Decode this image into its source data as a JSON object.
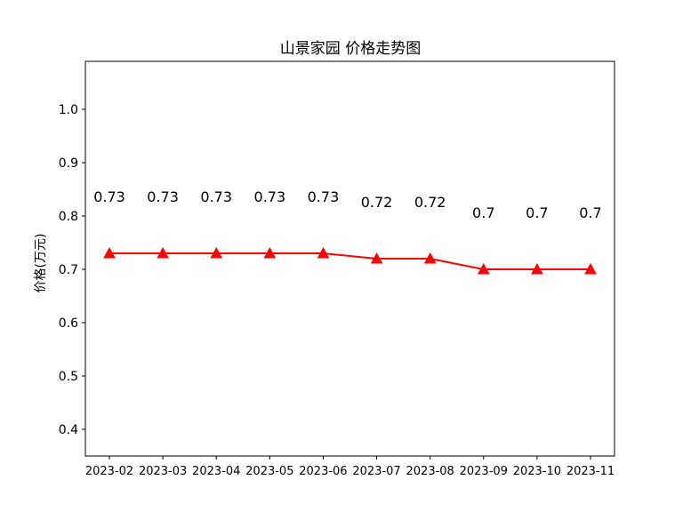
{
  "chart_data": {
    "type": "line",
    "title": "山景家园 价格走势图",
    "xlabel": "",
    "ylabel": "价格(万元)",
    "categories": [
      "2023-02",
      "2023-03",
      "2023-04",
      "2023-05",
      "2023-06",
      "2023-07",
      "2023-08",
      "2023-09",
      "2023-10",
      "2023-11"
    ],
    "series": [
      {
        "values": [
          0.73,
          0.73,
          0.73,
          0.73,
          0.73,
          0.72,
          0.72,
          0.7,
          0.7,
          0.7
        ],
        "labels": [
          "0.73",
          "0.73",
          "0.73",
          "0.73",
          "0.73",
          "0.72",
          "0.72",
          "0.7",
          "0.7",
          "0.7"
        ],
        "color": "#ff0000",
        "marker": "triangle-up"
      }
    ],
    "ylim": [
      0.35,
      1.09
    ],
    "yticks": [
      0.4,
      0.5,
      0.6,
      0.7,
      0.8,
      0.9,
      1.0
    ],
    "ytick_labels": [
      "0.4",
      "0.5",
      "0.6",
      "0.7",
      "0.8",
      "0.9",
      "1.0"
    ],
    "grid": false,
    "legend": "none"
  }
}
